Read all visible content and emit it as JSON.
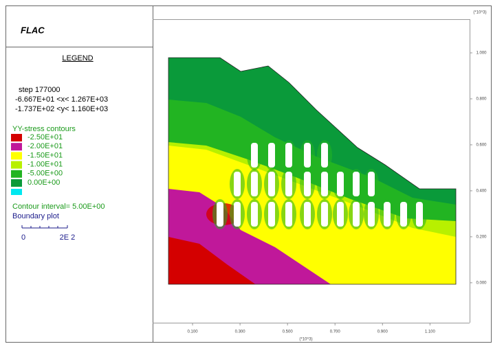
{
  "chart_data": {
    "type": "contour",
    "title": "FLAC",
    "legend_title": "LEGEND",
    "step_label": "step  177000",
    "x_range_label": "-6.667E+01 <x<  1.267E+03",
    "y_range_label": "-1.737E+02 <y<  1.160E+03",
    "contour_title": "YY-stress contours",
    "levels": [
      {
        "value": -25,
        "label": "-2.50E+01",
        "color": "#d40000"
      },
      {
        "value": -20,
        "label": "-2.00E+01",
        "color": "#c0189a"
      },
      {
        "value": -15,
        "label": "-1.50E+01",
        "color": "#ffff00"
      },
      {
        "value": -10,
        "label": "-1.00E+01",
        "color": "#b8f000"
      },
      {
        "value": -5,
        "label": "-5.00E+00",
        "color": "#22b422"
      },
      {
        "value": 0,
        "label": "0.00E+00",
        "color": "#0a9a3a"
      }
    ],
    "interval_label": "Contour interval=  5.00E+00",
    "boundary_label": "Boundary plot",
    "scale_labels": [
      "0",
      "2E 2"
    ],
    "x_multiplier": "(*10^3)",
    "y_multiplier": "(*10^3)",
    "xlim": [
      -0.06667,
      1.267
    ],
    "ylim": [
      -0.1737,
      1.16
    ],
    "xticks": [
      {
        "value": 0.1,
        "label": "0.100"
      },
      {
        "value": 0.3,
        "label": "0.300"
      },
      {
        "value": 0.5,
        "label": "0.500"
      },
      {
        "value": 0.7,
        "label": "0.700"
      },
      {
        "value": 0.9,
        "label": "0.900"
      },
      {
        "value": 1.1,
        "label": "1.100"
      }
    ],
    "yticks": [
      {
        "value": 0,
        "label": "0.000"
      },
      {
        "value": 0.2,
        "label": "0.200"
      },
      {
        "value": 0.4,
        "label": "0.400"
      },
      {
        "value": 0.6,
        "label": "0.600"
      },
      {
        "value": 0.8,
        "label": "0.800"
      },
      {
        "value": 1,
        "label": "1.000"
      }
    ]
  }
}
